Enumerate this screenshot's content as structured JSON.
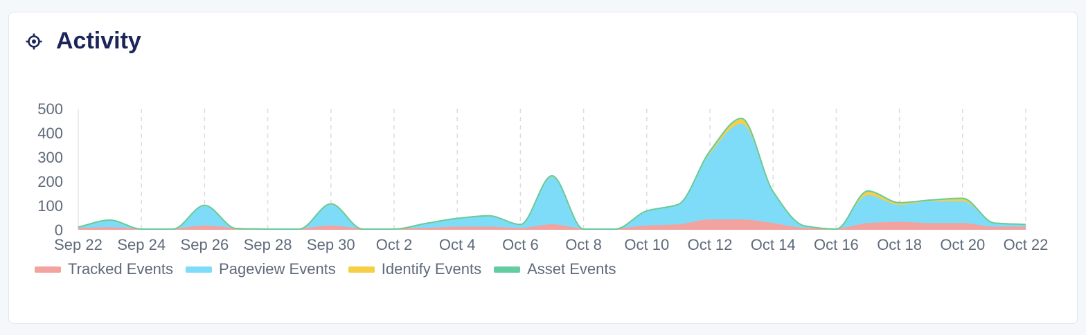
{
  "card": {
    "title": "Activity",
    "icon": "target-icon"
  },
  "chart_data": {
    "type": "area",
    "stacked": true,
    "smooth": true,
    "x_labels": [
      "Sep 22",
      "Sep 24",
      "Sep 26",
      "Sep 28",
      "Sep 30",
      "Oct 2",
      "Oct 4",
      "Oct 6",
      "Oct 8",
      "Oct 10",
      "Oct 12",
      "Oct 14",
      "Oct 16",
      "Oct 18",
      "Oct 20",
      "Oct 22"
    ],
    "x": [
      "Sep 22",
      "Sep 23",
      "Sep 24",
      "Sep 25",
      "Sep 26",
      "Sep 27",
      "Sep 28",
      "Sep 29",
      "Sep 30",
      "Oct 1",
      "Oct 2",
      "Oct 3",
      "Oct 4",
      "Oct 5",
      "Oct 6",
      "Oct 7",
      "Oct 8",
      "Oct 9",
      "Oct 10",
      "Oct 11",
      "Oct 12",
      "Oct 13",
      "Oct 14",
      "Oct 15",
      "Oct 16",
      "Oct 17",
      "Oct 18",
      "Oct 19",
      "Oct 20",
      "Oct 21",
      "Oct 22"
    ],
    "ylim": [
      0,
      500
    ],
    "y_ticks": [
      0,
      100,
      200,
      300,
      400,
      500
    ],
    "grid": {
      "vertical": true,
      "dashed": true,
      "horizontal": false
    },
    "legend_position": "bottom-left",
    "series": [
      {
        "name": "Tracked Events",
        "color": "#f2a39f",
        "values": [
          5,
          8,
          3,
          3,
          15,
          5,
          3,
          3,
          15,
          3,
          3,
          5,
          10,
          10,
          5,
          20,
          3,
          3,
          15,
          20,
          40,
          40,
          25,
          5,
          3,
          25,
          30,
          25,
          25,
          10,
          10
        ]
      },
      {
        "name": "Pageview Events",
        "color": "#7fdcf9",
        "values": [
          5,
          30,
          0,
          0,
          80,
          0,
          0,
          0,
          85,
          0,
          0,
          20,
          35,
          45,
          15,
          195,
          0,
          0,
          60,
          80,
          270,
          395,
          125,
          10,
          0,
          115,
          70,
          90,
          90,
          15,
          10
        ]
      },
      {
        "name": "Identify Events",
        "color": "#f5cf47",
        "values": [
          1,
          2,
          0,
          0,
          6,
          0,
          0,
          0,
          7,
          0,
          0,
          1,
          2,
          3,
          2,
          8,
          0,
          0,
          3,
          5,
          15,
          25,
          8,
          1,
          0,
          20,
          12,
          8,
          15,
          3,
          2
        ]
      },
      {
        "name": "Asset Events",
        "color": "#63cca0",
        "values": [
          0,
          0,
          0,
          0,
          0,
          0,
          0,
          0,
          0,
          0,
          0,
          0,
          0,
          0,
          0,
          0,
          0,
          0,
          0,
          0,
          0,
          0,
          0,
          0,
          0,
          0,
          0,
          0,
          0,
          0,
          0
        ]
      }
    ]
  }
}
